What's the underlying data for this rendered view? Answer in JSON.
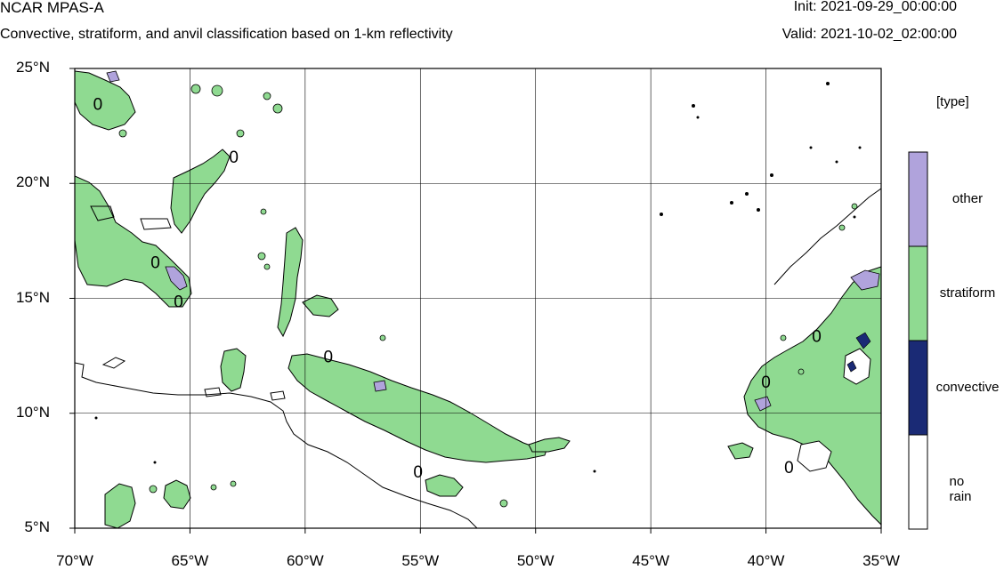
{
  "header": {
    "model_title": "NCAR MPAS-A",
    "subtitle": "Convective, stratiform, and anvil classification based on 1-km reflectivity",
    "init_text": "Init: 2021-09-29_00:00:00",
    "valid_text": "Valid: 2021-10-02_02:00:00"
  },
  "map": {
    "lon_range": [
      -70,
      -35
    ],
    "lat_range": [
      5,
      25
    ],
    "lat_ticks": [
      {
        "value": 25,
        "label": "25°N"
      },
      {
        "value": 20,
        "label": "20°N"
      },
      {
        "value": 15,
        "label": "15°N"
      },
      {
        "value": 10,
        "label": "10°N"
      },
      {
        "value": 5,
        "label": "5°N"
      }
    ],
    "lon_ticks": [
      {
        "value": -70,
        "label": "70°W"
      },
      {
        "value": -65,
        "label": "65°W"
      },
      {
        "value": -60,
        "label": "60°W"
      },
      {
        "value": -55,
        "label": "55°W"
      },
      {
        "value": -50,
        "label": "50°W"
      },
      {
        "value": -45,
        "label": "45°W"
      },
      {
        "value": -40,
        "label": "40°W"
      },
      {
        "value": -35,
        "label": "35°W"
      }
    ],
    "grid": true,
    "contour_label": "0",
    "contour_labels": [
      {
        "lon": -69.0,
        "lat": 23.4
      },
      {
        "lon": -63.1,
        "lat": 21.1
      },
      {
        "lon": -66.5,
        "lat": 16.5
      },
      {
        "lon": -65.5,
        "lat": 14.8
      },
      {
        "lon": -59.0,
        "lat": 12.4
      },
      {
        "lon": -55.1,
        "lat": 7.4
      },
      {
        "lon": -37.8,
        "lat": 13.3
      },
      {
        "lon": -40.0,
        "lat": 11.3
      },
      {
        "lon": -39.0,
        "lat": 7.6
      }
    ],
    "colors": {
      "other": "#b0a3dc",
      "stratiform": "#8fda91",
      "convective": "#1a2a75",
      "no_rain": "#ffffff",
      "contour": "#000000"
    }
  },
  "legend": {
    "title": "[type]",
    "items": [
      {
        "label": "other",
        "color": "#b0a3dc"
      },
      {
        "label": "stratiform",
        "color": "#8fda91"
      },
      {
        "label": "convective",
        "color": "#1a2a75"
      },
      {
        "label": "no rain",
        "color": "#ffffff"
      }
    ]
  }
}
